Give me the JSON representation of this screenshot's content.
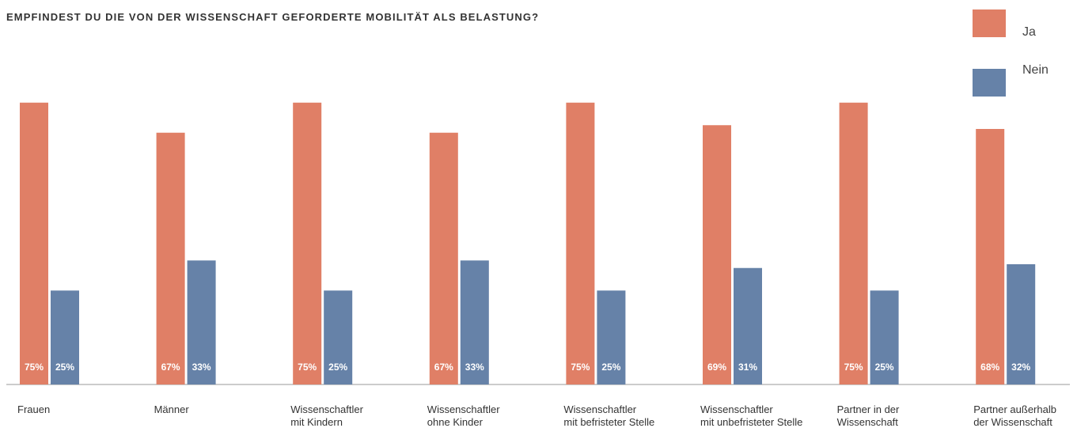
{
  "chart_data": {
    "type": "bar",
    "title": "EMPFINDEST DU DIE VON DER WISSENSCHAFT GEFORDERTE MOBILITÄT ALS BELASTUNG?",
    "categories": [
      "Frauen",
      "Männer",
      "Wissenschaftler\nmit Kindern",
      "Wissenschaftler\nohne Kinder",
      "Wissenschaftler\nmit befristeter Stelle",
      "Wissenschaftler\nmit unbefristeter Stelle",
      "Partner in der\nWissenschaft",
      "Partner außerhalb\nder Wissenschaft"
    ],
    "series": [
      {
        "name": "Ja",
        "color": "#e07f66",
        "values": [
          75,
          67,
          75,
          67,
          75,
          69,
          75,
          68
        ],
        "value_labels": [
          "75%",
          "67%",
          "75%",
          "67%",
          "75%",
          "69%",
          "75%",
          "68%"
        ]
      },
      {
        "name": "Nein",
        "color": "#6682a8",
        "values": [
          25,
          33,
          25,
          33,
          25,
          31,
          25,
          32
        ],
        "value_labels": [
          "25%",
          "33%",
          "25%",
          "33%",
          "25%",
          "31%",
          "25%",
          "32%"
        ]
      }
    ],
    "ylim": [
      0,
      100
    ]
  }
}
